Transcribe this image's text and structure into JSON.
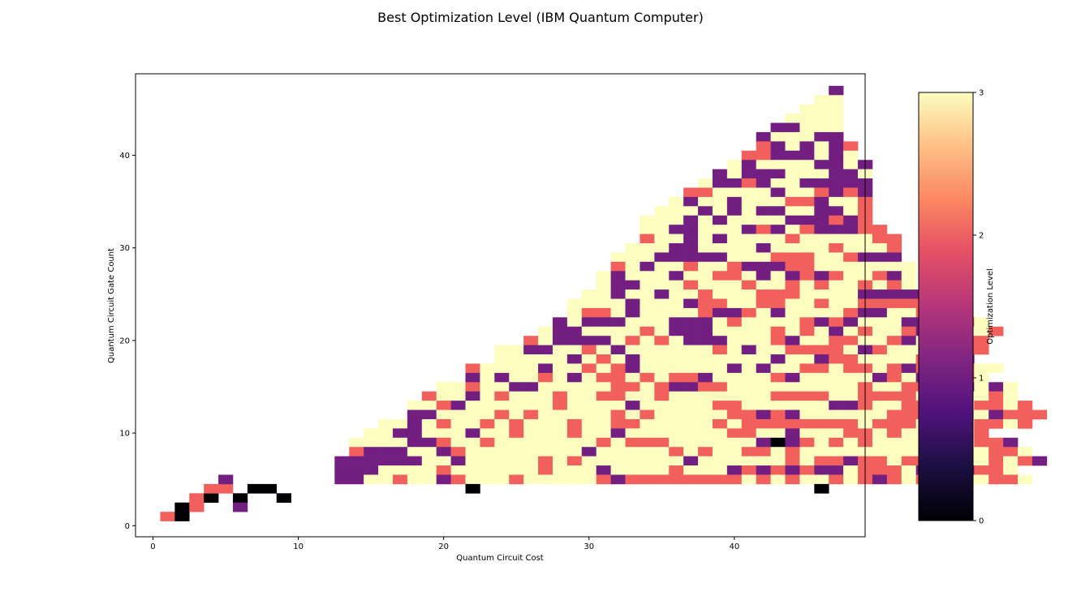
{
  "chart_data": {
    "type": "heatmap",
    "title": "Best Optimization Level (IBM Quantum Computer)",
    "xlabel": "Quantum Circuit Cost",
    "ylabel": "Quantum Circuit Gate Count",
    "colorbar_label": "Optimization Level",
    "colormap": "magma",
    "xlim": [
      -1.2,
      49
    ],
    "ylim": [
      -1.2,
      48.8
    ],
    "xticks": [
      0,
      10,
      20,
      30,
      40
    ],
    "yticks": [
      0,
      10,
      20,
      30,
      40
    ],
    "colorbar_ticks": [
      0,
      1,
      2,
      3
    ],
    "value_range": [
      0,
      3
    ],
    "grid": false,
    "cell_width": 1,
    "cell_height": 1,
    "x_start": 0.5,
    "y_start": 0.5,
    "rows_from_top": [
      "...............................................1",
      "..............................................33",
      ".............................................333",
      "............................................3333",
      "...........................................11333",
      "..........................................133311",
      "..........................................2131312",
      ".........................................22111313",
      "........................................3133331131",
      ".......................................13111333113",
      "......................................311213311111",
      ".....................................2233331332121",
      "....................................31331333221332",
      "...................................333131311331132",
      "..................................3331313333111212",
      "..................................33113331213211122",
      "..................................233131333323333322",
      ".................................3331133331333323332",
      "................................33311111333222332111",
      "................................231332332111223333333",
      "...............................3133313322313121233213",
      "...............................3113332333233232332323",
      "..............................3313313323332223333111112",
      ".............................333313331223322332332222222",
      ".............................3223133332112313333211332333",
      "............................131113331113233332121333112223",
      "...........................31133332311133332323132332123332",
      "..........................23111132323111333213322332133222",
      "........................3311332313333332313322223123333222",
      "........................333331323133333333313312233332221",
      "......................2333313323213333331313322322321223233",
      "......................131332313223232213333213333312313323",
      "....................3323311333332232112233333333323322321313",
      "...................23313233323322332333333322223322223333323",
      "..................3321333333233331333332233333311233223332232",
      "..................11333323233333232333332212133333322223331222",
      "................331323323233323322333332322222222322232232232",
      "...............3311333133233323313333333223313332232332132",
      "..............3333112332333333323222333333111232323333333221",
      "..............21113312333333331333332323322323333333333333223",
      ".............1111113313333323233333331333333232212232233332321",
      ".............11133332333333233313333233312121211322231111223",
      ".............113323312333233333212222222232323323212323333223"
    ],
    "cells": [
      [
        1,
        1,
        2
      ],
      [
        2,
        1,
        0
      ],
      [
        2,
        2,
        0
      ],
      [
        3,
        2,
        2
      ],
      [
        3,
        3,
        2
      ],
      [
        4,
        3,
        0
      ],
      [
        4,
        4,
        2
      ],
      [
        5,
        4,
        2
      ],
      [
        5,
        5,
        1
      ],
      [
        6,
        3,
        0
      ],
      [
        6,
        2,
        1
      ],
      [
        7,
        4,
        0
      ],
      [
        8,
        4,
        0
      ],
      [
        9,
        3,
        0
      ],
      [
        22,
        4,
        0
      ],
      [
        43,
        9,
        0
      ],
      [
        46,
        4,
        0
      ]
    ]
  }
}
